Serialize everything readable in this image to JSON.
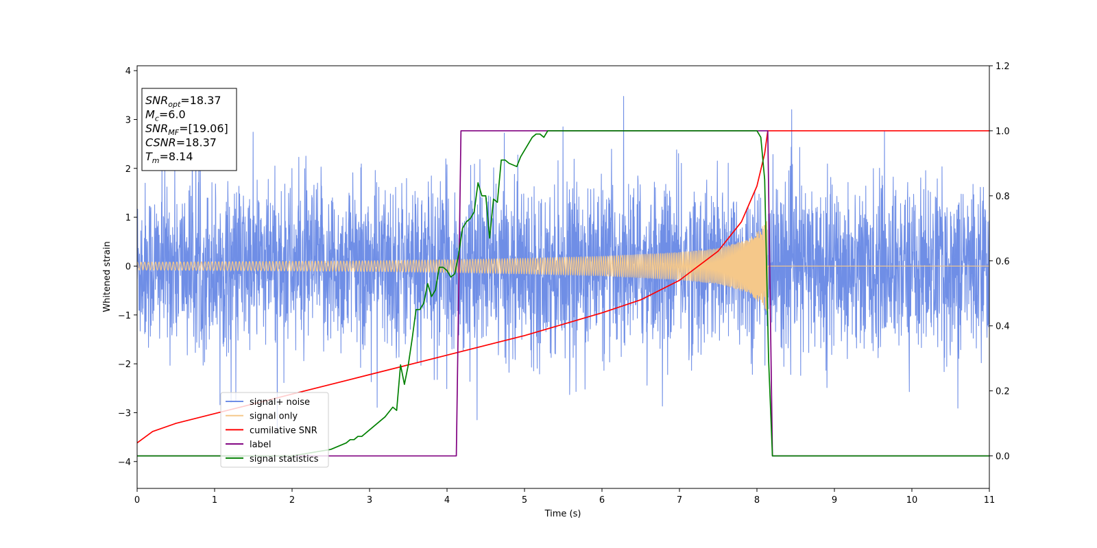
{
  "chart_data": {
    "type": "line",
    "xlabel": "Time (s)",
    "ylabel": "Whitened strain",
    "xlim": [
      0,
      11
    ],
    "ylim": [
      -4.55,
      4.1
    ],
    "y2lim": [
      -0.1,
      1.2
    ],
    "x_ticks": [
      0,
      1,
      2,
      3,
      4,
      5,
      6,
      7,
      8,
      9,
      10,
      11
    ],
    "y_ticks": [
      -4,
      -3,
      -2,
      -1,
      0,
      1,
      2,
      3,
      4
    ],
    "y2_ticks": [
      0.0,
      0.2,
      0.4,
      0.6,
      0.8,
      1.0,
      1.2
    ],
    "grid": false,
    "legend_position": "lower-left",
    "info_box": {
      "position": "top-left",
      "lines": [
        {
          "base": "SNR",
          "sub": "opt",
          "value": "=18.37"
        },
        {
          "base": "M",
          "sub": "c",
          "value": "=6.0"
        },
        {
          "base": "SNR",
          "sub": "MF",
          "value": "=[19.06]"
        },
        {
          "base": "CSNR",
          "sub": "",
          "value": "=18.37"
        },
        {
          "base": "T",
          "sub": "m",
          "value": "=8.14"
        }
      ]
    },
    "merger_time": 8.14,
    "series": [
      {
        "name": "signal+ noise",
        "color": "#6f8ee6",
        "axis": "left",
        "kind": "noise",
        "noise_amplitude": 1.35,
        "x_range": [
          0,
          11
        ]
      },
      {
        "name": "signal only",
        "color": "#f5c88a",
        "axis": "left",
        "kind": "chirp-envelope",
        "x": [
          0,
          1,
          2,
          3,
          4,
          5,
          6,
          7,
          7.5,
          7.9,
          8.1,
          8.14,
          8.15,
          11
        ],
        "envelope": [
          0.08,
          0.09,
          0.1,
          0.11,
          0.13,
          0.16,
          0.2,
          0.28,
          0.36,
          0.55,
          0.85,
          0.95,
          0.0,
          0.0
        ]
      },
      {
        "name": "cumilative SNR",
        "color": "#ff0000",
        "axis": "right",
        "x": [
          0,
          0.2,
          0.5,
          1,
          2,
          3,
          4,
          5,
          6,
          6.5,
          7,
          7.5,
          7.8,
          8.0,
          8.1,
          8.14,
          11
        ],
        "y": [
          0.04,
          0.075,
          0.1,
          0.13,
          0.19,
          0.25,
          0.31,
          0.37,
          0.44,
          0.48,
          0.54,
          0.63,
          0.72,
          0.83,
          0.93,
          1.0,
          1.0
        ]
      },
      {
        "name": "label",
        "color": "#800080",
        "axis": "right",
        "x": [
          0,
          4.12,
          4.18,
          8.14,
          8.2,
          11
        ],
        "y": [
          0,
          0,
          1,
          1,
          0,
          0
        ]
      },
      {
        "name": "signal statistics",
        "color": "#008000",
        "axis": "right",
        "x": [
          0,
          1,
          2,
          2.5,
          2.6,
          2.7,
          2.75,
          2.8,
          2.85,
          2.9,
          3.0,
          3.1,
          3.15,
          3.2,
          3.3,
          3.35,
          3.4,
          3.45,
          3.5,
          3.55,
          3.6,
          3.65,
          3.7,
          3.75,
          3.8,
          3.85,
          3.9,
          3.95,
          4.0,
          4.05,
          4.1,
          4.15,
          4.2,
          4.25,
          4.3,
          4.35,
          4.4,
          4.45,
          4.5,
          4.55,
          4.6,
          4.65,
          4.7,
          4.75,
          4.8,
          4.9,
          4.95,
          5.0,
          5.05,
          5.1,
          5.15,
          5.2,
          5.25,
          5.3,
          5.4,
          5.5,
          5.6,
          6.0,
          6.5,
          7.0,
          7.5,
          8.0,
          8.05,
          8.1,
          8.15,
          8.2,
          11
        ],
        "y": [
          0.0,
          0.0,
          0.0,
          0.02,
          0.03,
          0.04,
          0.05,
          0.05,
          0.06,
          0.06,
          0.08,
          0.1,
          0.11,
          0.12,
          0.15,
          0.14,
          0.28,
          0.22,
          0.28,
          0.36,
          0.45,
          0.45,
          0.47,
          0.53,
          0.49,
          0.51,
          0.58,
          0.58,
          0.57,
          0.55,
          0.56,
          0.62,
          0.7,
          0.72,
          0.73,
          0.75,
          0.84,
          0.8,
          0.8,
          0.67,
          0.79,
          0.78,
          0.91,
          0.91,
          0.9,
          0.89,
          0.92,
          0.94,
          0.96,
          0.98,
          0.99,
          0.99,
          0.98,
          1.0,
          1.0,
          1.0,
          1.0,
          1.0,
          1.0,
          1.0,
          1.0,
          1.0,
          0.98,
          0.85,
          0.3,
          0.0,
          0.0
        ]
      }
    ]
  }
}
